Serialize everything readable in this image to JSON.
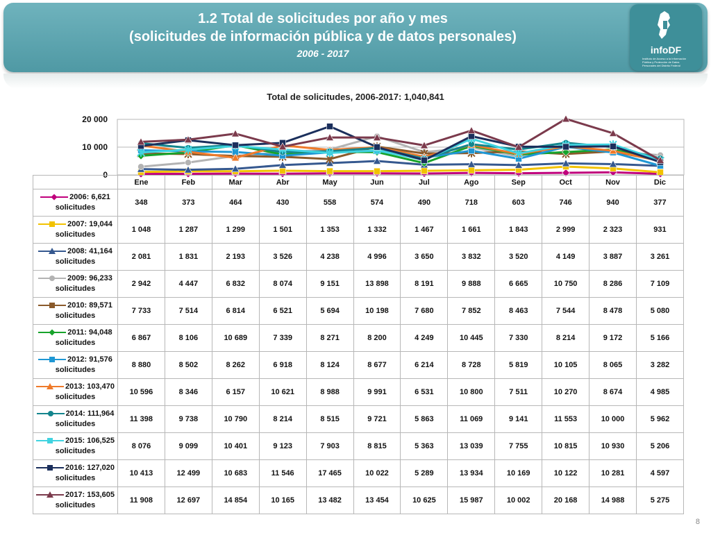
{
  "header": {
    "title_line1": "1.2 Total de solicitudes por año y mes",
    "title_line2": "(solicitudes de información pública y de datos personales)",
    "years": "2006 - 2017",
    "logo_text": "infoDF",
    "logo_sub": "Instituto de Acceso a la Información Pública y Protección de Datos Personales del Distrito Federal"
  },
  "page_number": "8",
  "chart_data": {
    "type": "line",
    "title": "Total de solicitudes, 2006-2017: 1,040,841",
    "categories": [
      "Ene",
      "Feb",
      "Mar",
      "Abr",
      "May",
      "Jun",
      "Jul",
      "Ago",
      "Sep",
      "Oct",
      "Nov",
      "Dic"
    ],
    "ylim": [
      0,
      20000
    ],
    "y_ticks": [
      0,
      10000,
      20000
    ],
    "y_tick_labels": [
      "0",
      "10 000",
      "20 000"
    ],
    "grid": true,
    "legend_placement": "data-table-left",
    "series": [
      {
        "name_line1": "2006: 6,621",
        "name_line2": "solicitudes",
        "color": "#c0007c",
        "marker": "diamond",
        "values": [
          348,
          373,
          464,
          430,
          558,
          574,
          490,
          718,
          603,
          746,
          940,
          377
        ],
        "labels": [
          "348",
          "373",
          "464",
          "430",
          "558",
          "574",
          "490",
          "718",
          "603",
          "746",
          "940",
          "377"
        ]
      },
      {
        "name_line1": "2007: 19,044",
        "name_line2": "solicitudes",
        "color": "#f2c200",
        "marker": "square",
        "values": [
          1048,
          1287,
          1299,
          1501,
          1353,
          1332,
          1467,
          1661,
          1843,
          2999,
          2323,
          931
        ],
        "labels": [
          "1 048",
          "1 287",
          "1 299",
          "1 501",
          "1 353",
          "1 332",
          "1 467",
          "1 661",
          "1 843",
          "2 999",
          "2 323",
          "931"
        ]
      },
      {
        "name_line1": "2008: 41,164",
        "name_line2": "solicitudes",
        "color": "#35588f",
        "marker": "triangle",
        "values": [
          2081,
          1831,
          2193,
          3526,
          4238,
          4996,
          3650,
          3832,
          3520,
          4149,
          3887,
          3261
        ],
        "labels": [
          "2 081",
          "1 831",
          "2 193",
          "3 526",
          "4 238",
          "4 996",
          "3 650",
          "3 832",
          "3 520",
          "4 149",
          "3 887",
          "3 261"
        ]
      },
      {
        "name_line1": "2009: 96,233",
        "name_line2": "solicitudes",
        "color": "#b3b3b3",
        "marker": "circle",
        "values": [
          2942,
          4447,
          6832,
          8074,
          9151,
          13898,
          8191,
          9888,
          6665,
          10750,
          8286,
          7109
        ],
        "labels": [
          "2 942",
          "4 447",
          "6 832",
          "8 074",
          "9 151",
          "13 898",
          "8 191",
          "9 888",
          "6 665",
          "10 750",
          "8 286",
          "7 109"
        ]
      },
      {
        "name_line1": "2010: 89,571",
        "name_line2": "solicitudes",
        "color": "#8a5a2b",
        "marker": "star",
        "values": [
          7733,
          7514,
          6814,
          6521,
          5694,
          10198,
          7680,
          7852,
          8463,
          7544,
          8478,
          5080
        ],
        "labels": [
          "7 733",
          "7 514",
          "6 814",
          "6 521",
          "5 694",
          "10 198",
          "7 680",
          "7 852",
          "8 463",
          "7 544",
          "8 478",
          "5 080"
        ]
      },
      {
        "name_line1": "2011: 94,048",
        "name_line2": "solicitudes",
        "color": "#17a32b",
        "marker": "diamond",
        "values": [
          6867,
          8106,
          10689,
          7339,
          8271,
          8200,
          4249,
          10445,
          7330,
          8214,
          9172,
          5166
        ],
        "labels": [
          "6 867",
          "8 106",
          "10 689",
          "7 339",
          "8 271",
          "8 200",
          "4 249",
          "10 445",
          "7 330",
          "8 214",
          "9 172",
          "5 166"
        ]
      },
      {
        "name_line1": "2012: 91,576",
        "name_line2": "solicitudes",
        "color": "#1f97d4",
        "marker": "square",
        "values": [
          8880,
          8502,
          8262,
          6918,
          8124,
          8677,
          6214,
          8728,
          5819,
          10105,
          8065,
          3282
        ],
        "labels": [
          "8 880",
          "8 502",
          "8 262",
          "6 918",
          "8 124",
          "8 677",
          "6 214",
          "8 728",
          "5 819",
          "10 105",
          "8 065",
          "3 282"
        ]
      },
      {
        "name_line1": "2013: 103,470",
        "name_line2": "solicitudes",
        "color": "#ef7a2a",
        "marker": "triangle",
        "values": [
          10596,
          8346,
          6157,
          10621,
          8988,
          9991,
          6531,
          10800,
          7511,
          10270,
          8674,
          4985
        ],
        "labels": [
          "10 596",
          "8 346",
          "6 157",
          "10 621",
          "8 988",
          "9 991",
          "6 531",
          "10 800",
          "7 511",
          "10 270",
          "8 674",
          "4 985"
        ]
      },
      {
        "name_line1": "2014: 111,964",
        "name_line2": "solicitudes",
        "color": "#14858d",
        "marker": "circle",
        "values": [
          11398,
          9738,
          10790,
          8214,
          8515,
          9721,
          5863,
          11069,
          9141,
          11553,
          10000,
          5962
        ],
        "labels": [
          "11 398",
          "9 738",
          "10 790",
          "8 214",
          "8 515",
          "9 721",
          "5 863",
          "11 069",
          "9 141",
          "11 553",
          "10 000",
          "5 962"
        ]
      },
      {
        "name_line1": "2015: 106,525",
        "name_line2": "solicitudes",
        "color": "#40d3e0",
        "marker": "star",
        "values": [
          8076,
          9099,
          10401,
          9123,
          7903,
          8815,
          5363,
          13039,
          7755,
          10815,
          10930,
          5206
        ],
        "labels": [
          "8 076",
          "9 099",
          "10 401",
          "9 123",
          "7 903",
          "8 815",
          "5 363",
          "13 039",
          "7 755",
          "10 815",
          "10 930",
          "5 206"
        ]
      },
      {
        "name_line1": "2016: 127,020",
        "name_line2": "solicitudes",
        "color": "#1b2f5c",
        "marker": "square",
        "values": [
          10413,
          12499,
          10683,
          11546,
          17465,
          10022,
          5289,
          13934,
          10169,
          10122,
          10281,
          4597
        ],
        "labels": [
          "10 413",
          "12 499",
          "10 683",
          "11 546",
          "17 465",
          "10 022",
          "5 289",
          "13 934",
          "10 169",
          "10 122",
          "10 281",
          "4 597"
        ]
      },
      {
        "name_line1": "2017: 153,605",
        "name_line2": "solicitudes",
        "color": "#7b3a4c",
        "marker": "triangle",
        "values": [
          11908,
          12697,
          14854,
          10165,
          13482,
          13454,
          10625,
          15987,
          10002,
          20168,
          14988,
          5275
        ],
        "labels": [
          "11 908",
          "12 697",
          "14 854",
          "10 165",
          "13 482",
          "13 454",
          "10 625",
          "15 987",
          "10 002",
          "20 168",
          "14 988",
          "5 275"
        ]
      }
    ]
  }
}
